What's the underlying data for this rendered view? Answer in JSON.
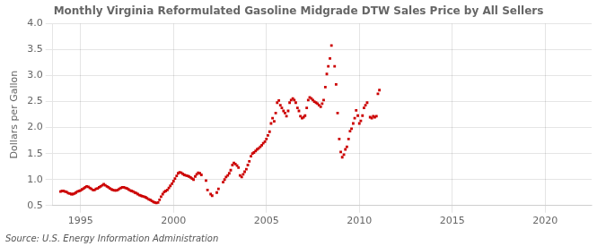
{
  "chart_data": {
    "type": "scatter",
    "title": "Monthly Virginia Reformulated Gasoline Midgrade DTW Sales Price by All Sellers",
    "ylabel": "Dollars per Gallon",
    "annotations": [
      "Source: U.S. Energy Information Administration"
    ],
    "color": "#CC0000",
    "marker": "square",
    "grid": true,
    "xlim": [
      1993.5,
      2022.5
    ],
    "ylim": [
      0.5,
      4.0
    ],
    "xticks": [
      1995,
      2000,
      2005,
      2010,
      2015,
      2020
    ],
    "yticks": [
      0.5,
      {
        "value": 1.0,
        "label": "1.0"
      },
      1.5,
      {
        "value": 2.0,
        "label": "2.0"
      },
      2.5,
      {
        "value": 3.0,
        "label": "3.0"
      },
      3.5,
      {
        "value": 4.0,
        "label": "4.0"
      }
    ],
    "x": [
      1993.92,
      1994.0,
      1994.08,
      1994.17,
      1994.25,
      1994.33,
      1994.42,
      1994.5,
      1994.58,
      1994.67,
      1994.75,
      1994.83,
      1994.92,
      1995.0,
      1995.08,
      1995.17,
      1995.25,
      1995.33,
      1995.42,
      1995.5,
      1995.58,
      1995.67,
      1995.75,
      1995.83,
      1995.92,
      1996.0,
      1996.08,
      1996.17,
      1996.25,
      1996.33,
      1996.42,
      1996.5,
      1996.58,
      1996.67,
      1996.75,
      1996.83,
      1996.92,
      1997.0,
      1997.08,
      1997.17,
      1997.25,
      1997.33,
      1997.42,
      1997.5,
      1997.58,
      1997.67,
      1997.75,
      1997.83,
      1997.92,
      1998.0,
      1998.08,
      1998.17,
      1998.25,
      1998.33,
      1998.42,
      1998.5,
      1998.58,
      1998.67,
      1998.75,
      1998.83,
      1998.92,
      1999.0,
      1999.08,
      1999.17,
      1999.25,
      1999.33,
      1999.42,
      1999.5,
      1999.58,
      1999.67,
      1999.75,
      1999.83,
      1999.92,
      2000.0,
      2000.08,
      2000.17,
      2000.25,
      2000.33,
      2000.42,
      2000.5,
      2000.58,
      2000.67,
      2000.75,
      2000.83,
      2000.92,
      2001.0,
      2001.08,
      2001.17,
      2001.25,
      2001.33,
      2001.42,
      2001.5,
      2001.75,
      2001.83,
      2002.0,
      2002.08,
      2002.33,
      2002.42,
      2002.67,
      2002.75,
      2002.83,
      2002.92,
      2003.0,
      2003.08,
      2003.17,
      2003.25,
      2003.33,
      2003.42,
      2003.5,
      2003.58,
      2003.67,
      2003.75,
      2003.83,
      2003.92,
      2004.0,
      2004.08,
      2004.17,
      2004.25,
      2004.33,
      2004.42,
      2004.5,
      2004.58,
      2004.67,
      2004.75,
      2004.83,
      2004.92,
      2005.0,
      2005.08,
      2005.17,
      2005.25,
      2005.33,
      2005.42,
      2005.5,
      2005.58,
      2005.67,
      2005.75,
      2005.83,
      2005.92,
      2006.0,
      2006.08,
      2006.17,
      2006.25,
      2006.33,
      2006.42,
      2006.5,
      2006.58,
      2006.67,
      2006.75,
      2006.83,
      2006.92,
      2007.0,
      2007.08,
      2007.17,
      2007.25,
      2007.33,
      2007.42,
      2007.5,
      2007.58,
      2007.67,
      2007.75,
      2007.83,
      2007.92,
      2008.0,
      2008.08,
      2008.17,
      2008.25,
      2008.33,
      2008.42,
      2008.5,
      2008.67,
      2008.75,
      2008.83,
      2008.92,
      2009.0,
      2009.08,
      2009.17,
      2009.25,
      2009.33,
      2009.42,
      2009.5,
      2009.58,
      2009.67,
      2009.75,
      2009.83,
      2009.92,
      2010.0,
      2010.08,
      2010.17,
      2010.25,
      2010.33,
      2010.42,
      2010.58,
      2010.67,
      2010.75,
      2010.83,
      2010.92,
      2011.0,
      2011.08
    ],
    "values": [
      0.77,
      0.78,
      0.78,
      0.77,
      0.76,
      0.74,
      0.73,
      0.72,
      0.72,
      0.73,
      0.75,
      0.77,
      0.78,
      0.79,
      0.81,
      0.83,
      0.85,
      0.87,
      0.86,
      0.84,
      0.82,
      0.8,
      0.8,
      0.82,
      0.83,
      0.85,
      0.87,
      0.89,
      0.91,
      0.89,
      0.87,
      0.85,
      0.83,
      0.81,
      0.8,
      0.79,
      0.79,
      0.8,
      0.82,
      0.84,
      0.85,
      0.85,
      0.84,
      0.83,
      0.81,
      0.79,
      0.78,
      0.77,
      0.75,
      0.74,
      0.72,
      0.7,
      0.69,
      0.68,
      0.67,
      0.66,
      0.64,
      0.62,
      0.61,
      0.59,
      0.57,
      0.56,
      0.55,
      0.56,
      0.61,
      0.67,
      0.72,
      0.76,
      0.78,
      0.8,
      0.84,
      0.88,
      0.92,
      0.97,
      1.02,
      1.07,
      1.12,
      1.14,
      1.13,
      1.11,
      1.09,
      1.08,
      1.07,
      1.06,
      1.04,
      1.02,
      1.0,
      1.06,
      1.1,
      1.13,
      1.12,
      1.09,
      0.98,
      0.8,
      0.72,
      0.69,
      0.75,
      0.82,
      0.95,
      1.0,
      1.05,
      1.08,
      1.12,
      1.18,
      1.28,
      1.32,
      1.3,
      1.27,
      1.23,
      1.08,
      1.05,
      1.1,
      1.15,
      1.2,
      1.28,
      1.35,
      1.45,
      1.5,
      1.52,
      1.55,
      1.58,
      1.6,
      1.63,
      1.66,
      1.7,
      1.73,
      1.78,
      1.85,
      1.92,
      2.08,
      2.18,
      2.12,
      2.28,
      2.48,
      2.52,
      2.43,
      2.38,
      2.32,
      2.28,
      2.22,
      2.32,
      2.48,
      2.53,
      2.56,
      2.53,
      2.48,
      2.38,
      2.32,
      2.22,
      2.18,
      2.2,
      2.23,
      2.38,
      2.53,
      2.58,
      2.56,
      2.53,
      2.5,
      2.48,
      2.46,
      2.43,
      2.4,
      2.46,
      2.53,
      2.78,
      3.03,
      3.18,
      3.33,
      3.58,
      3.18,
      2.83,
      2.28,
      1.78,
      1.53,
      1.43,
      1.48,
      1.58,
      1.63,
      1.78,
      1.93,
      1.98,
      2.08,
      2.18,
      2.33,
      2.23,
      2.08,
      2.13,
      2.23,
      2.38,
      2.43,
      2.48,
      2.2,
      2.18,
      2.22,
      2.2,
      2.22,
      2.65,
      2.72
    ]
  }
}
